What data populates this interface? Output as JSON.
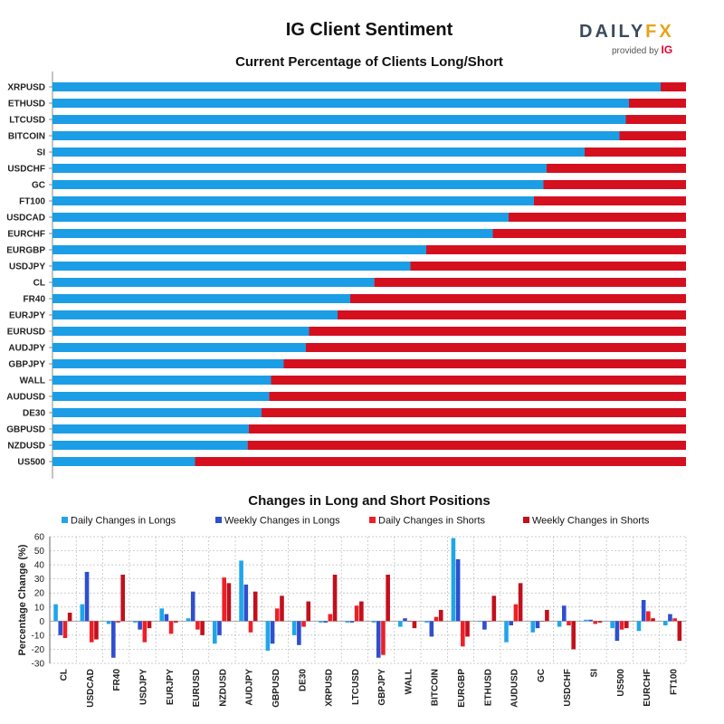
{
  "header": {
    "title": "IG Client Sentiment",
    "logo_text_a": "DAILY",
    "logo_text_b": "FX",
    "logo_sub": "provided by",
    "logo_ig": "IG"
  },
  "colors": {
    "long": "#1b9ee6",
    "short": "#d4101f",
    "daily_long": "#1ea6ea",
    "weekly_long": "#2f4fcf",
    "daily_short": "#ee1f26",
    "weekly_short": "#c2101c"
  },
  "chart_data": [
    {
      "type": "bar",
      "orientation": "horizontal-stacked",
      "title": "Current Percentage of Clients Long/Short",
      "categories": [
        "XRPUSD",
        "ETHUSD",
        "LTCUSD",
        "BITCOIN",
        "SI",
        "USDCHF",
        "GC",
        "FT100",
        "USDCAD",
        "EURCHF",
        "EURGBP",
        "USDJPY",
        "CL",
        "FR40",
        "EURJPY",
        "EURUSD",
        "AUDJPY",
        "GBPJPY",
        "WALL",
        "AUDUSD",
        "DE30",
        "GBPUSD",
        "NZDUSD",
        "US500"
      ],
      "series": [
        {
          "values": [
            96,
            91,
            90.5,
            89.5,
            84,
            78,
            77.5,
            76,
            72,
            69.5,
            59,
            56.5,
            50.8,
            47,
            45,
            40.5,
            40,
            36.5,
            34.5,
            34.2,
            33,
            31,
            30.8,
            22.5
          ]
        },
        {
          "values": [
            4,
            9,
            9.5,
            10.5,
            16,
            22,
            22.5,
            24,
            28,
            30.5,
            41,
            43.5,
            49.2,
            53,
            55,
            59.5,
            60,
            63.5,
            65.5,
            65.8,
            67,
            69,
            69.2,
            77.5
          ]
        }
      ],
      "xlim": [
        0,
        100
      ]
    },
    {
      "type": "bar",
      "title": "Changes in Long and Short Positions",
      "ylabel": "Percentage Change (%)",
      "ylim": [
        -30,
        60
      ],
      "yticks": [
        "60",
        "50",
        "40",
        "30",
        "20",
        "10",
        "0",
        "-10",
        "-20",
        "-30"
      ],
      "categories": [
        "CL",
        "USDCAD",
        "FR40",
        "USDJPY",
        "EURJPY",
        "EURUSD",
        "NZDUSD",
        "AUDJPY",
        "GBPUSD",
        "DE30",
        "XRPUSD",
        "LTCUSD",
        "GBPJPY",
        "WALL",
        "BITCOIN",
        "EURGBP",
        "ETHUSD",
        "AUDUSD",
        "GC",
        "USDCHF",
        "SI",
        "US500",
        "EURCHF",
        "FT100"
      ],
      "series": [
        {
          "name": "Daily Changes in Longs",
          "values": [
            12,
            12,
            -2,
            -1,
            9,
            2,
            -16,
            43,
            -21,
            -10,
            -1,
            -1,
            -1,
            -4,
            -1,
            59,
            0,
            -15,
            -8,
            -4,
            1,
            -5,
            -7,
            -3
          ]
        },
        {
          "name": "Weekly Changes in Longs",
          "values": [
            -10,
            35,
            -26,
            -6,
            5,
            21,
            -10,
            26,
            -16,
            -17,
            -1,
            -1,
            -26,
            2,
            -11,
            44,
            -6,
            -3,
            -5,
            11,
            1,
            -14,
            15,
            5
          ]
        },
        {
          "name": "Daily Changes in Shorts",
          "values": [
            -12,
            -15,
            -1,
            -15,
            -9,
            -6,
            31,
            -8,
            9,
            -4,
            5,
            11,
            -24,
            0,
            3,
            -18,
            0,
            12,
            0,
            -3,
            -2,
            -6,
            7,
            2
          ]
        },
        {
          "name": "Weekly Changes in Shorts",
          "values": [
            6,
            -13,
            33,
            -5,
            -1,
            -10,
            27,
            21,
            18,
            14,
            33,
            14,
            33,
            -5,
            8,
            -11,
            18,
            27,
            8,
            -20,
            -1,
            -5,
            2,
            -14
          ]
        }
      ]
    }
  ]
}
